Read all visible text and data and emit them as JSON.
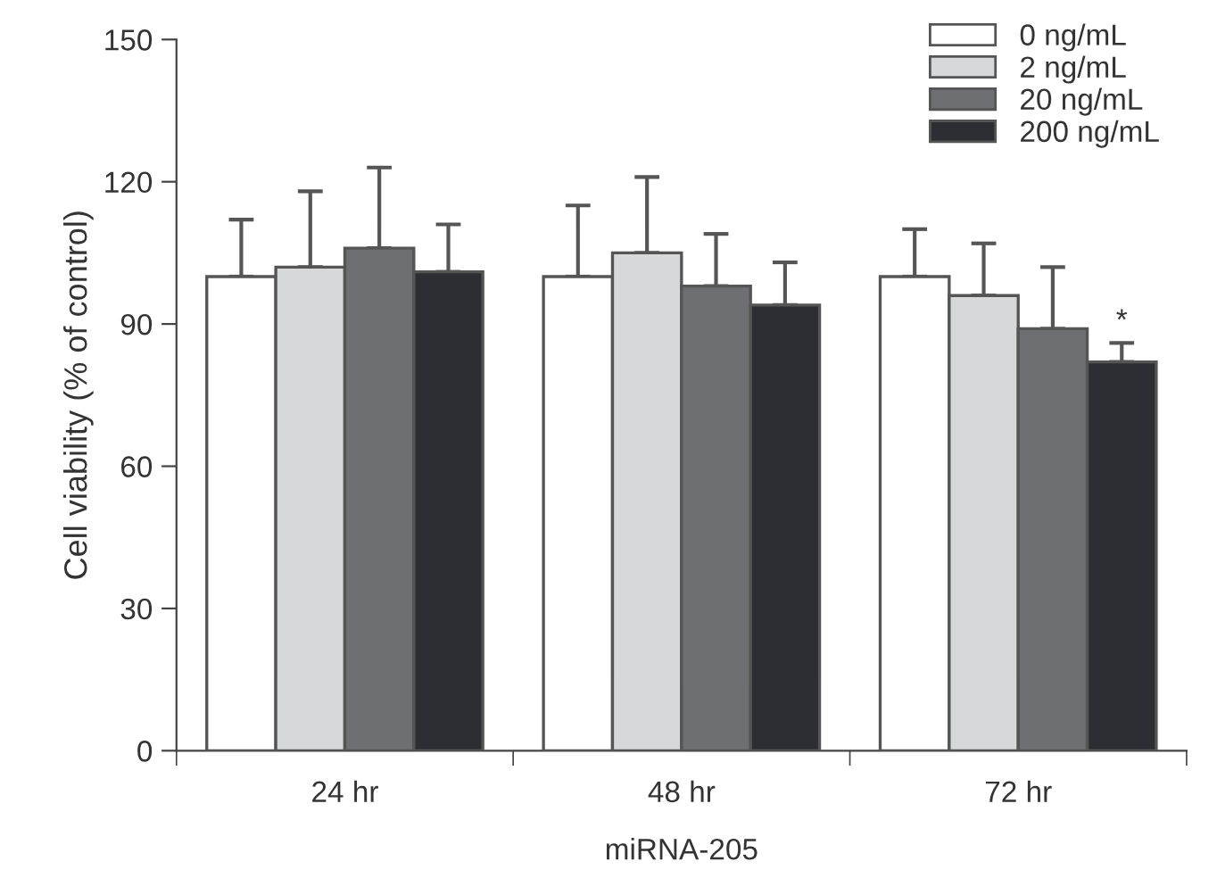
{
  "chart_data": {
    "type": "bar",
    "xlabel": "miRNA-205",
    "ylabel": "Cell viability (% of control)",
    "categories": [
      "24 hr",
      "48 hr",
      "72 hr"
    ],
    "series": [
      {
        "name": "0 ng/mL",
        "color": "#ffffff",
        "values": [
          100,
          100,
          100
        ],
        "errors": [
          [
            100,
            112
          ],
          [
            100,
            115
          ],
          [
            100,
            110
          ]
        ]
      },
      {
        "name": "2 ng/mL",
        "color": "#d6d8da",
        "values": [
          102,
          105,
          96
        ],
        "errors": [
          [
            102,
            118
          ],
          [
            105,
            121
          ],
          [
            96,
            107
          ]
        ]
      },
      {
        "name": "20 ng/mL",
        "color": "#6e6f73",
        "values": [
          106,
          98,
          89
        ],
        "errors": [
          [
            106,
            123
          ],
          [
            98,
            109
          ],
          [
            89,
            102
          ]
        ]
      },
      {
        "name": "200 ng/mL",
        "color": "#2d2e33",
        "values": [
          101,
          94,
          82
        ],
        "errors": [
          [
            101,
            111
          ],
          [
            94,
            103
          ],
          [
            82,
            86
          ]
        ]
      }
    ],
    "annotations": [
      "*"
    ],
    "ylim": [
      0,
      150
    ],
    "yticks": [
      0,
      30,
      60,
      90,
      120,
      150
    ],
    "grid": false,
    "legend": "top right"
  }
}
